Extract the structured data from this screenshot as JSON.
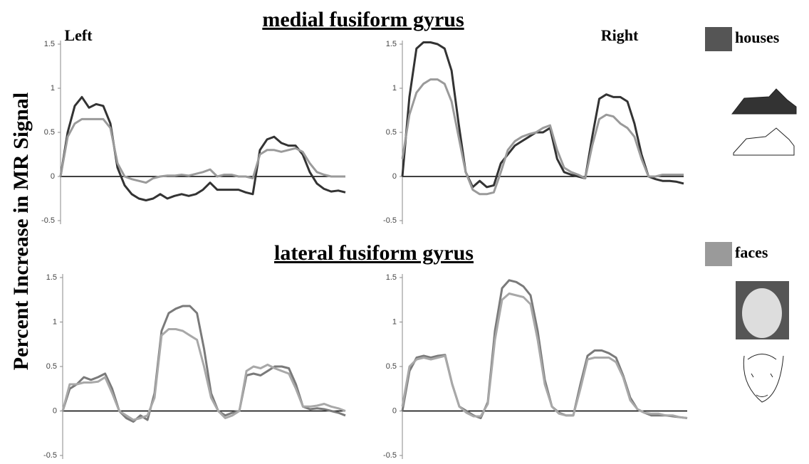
{
  "figure": {
    "ylabel": "Percent Increase in MR Signal",
    "sections": [
      "medial fusiform gyrus",
      "lateral fusiform gyrus"
    ],
    "legend": [
      {
        "name": "houses",
        "color": "#555555"
      },
      {
        "name": "faces",
        "color": "#9a9a9a"
      }
    ]
  },
  "chart_data": [
    {
      "type": "line",
      "title": "Left",
      "ylim": [
        -0.5,
        1.5
      ],
      "yticks": [
        -0.5,
        0,
        0.5,
        1,
        1.5
      ],
      "series": [
        {
          "color": "#333333",
          "values": [
            0,
            0.5,
            0.8,
            0.9,
            0.78,
            0.82,
            0.8,
            0.6,
            0.1,
            -0.1,
            -0.2,
            -0.25,
            -0.27,
            -0.25,
            -0.2,
            -0.25,
            -0.22,
            -0.2,
            -0.22,
            -0.2,
            -0.15,
            -0.07,
            -0.15,
            -0.15,
            -0.15,
            -0.15,
            -0.18,
            -0.2,
            0.3,
            0.42,
            0.45,
            0.38,
            0.35,
            0.35,
            0.25,
            0.05,
            -0.08,
            -0.14,
            -0.17,
            -0.16,
            -0.18
          ]
        },
        {
          "color": "#9a9a9a",
          "values": [
            0,
            0.45,
            0.6,
            0.65,
            0.65,
            0.65,
            0.65,
            0.55,
            0.15,
            0,
            -0.03,
            -0.05,
            -0.07,
            -0.02,
            0,
            0.01,
            0.01,
            0.02,
            0.01,
            0.03,
            0.05,
            0.08,
            0,
            0.02,
            0.02,
            0,
            0,
            -0.02,
            0.25,
            0.3,
            0.3,
            0.28,
            0.3,
            0.32,
            0.28,
            0.15,
            0.05,
            0.02,
            0,
            0,
            0
          ]
        }
      ]
    },
    {
      "type": "line",
      "title": "Right",
      "ylim": [
        -0.5,
        1.5
      ],
      "yticks": [
        -0.5,
        0,
        0.5,
        1,
        1.5
      ],
      "series": [
        {
          "color": "#333333",
          "values": [
            0,
            0.9,
            1.45,
            1.52,
            1.52,
            1.5,
            1.45,
            1.2,
            0.6,
            0.05,
            -0.12,
            -0.05,
            -0.12,
            -0.1,
            0.15,
            0.25,
            0.35,
            0.4,
            0.45,
            0.5,
            0.5,
            0.55,
            0.2,
            0.05,
            0.02,
            0,
            -0.02,
            0.45,
            0.88,
            0.93,
            0.9,
            0.9,
            0.85,
            0.6,
            0.25,
            0,
            -0.03,
            -0.05,
            -0.05,
            -0.06,
            -0.08
          ]
        },
        {
          "color": "#9a9a9a",
          "values": [
            0.2,
            0.7,
            0.95,
            1.05,
            1.1,
            1.1,
            1.05,
            0.85,
            0.45,
            0.05,
            -0.15,
            -0.2,
            -0.2,
            -0.18,
            0.05,
            0.3,
            0.4,
            0.45,
            0.48,
            0.5,
            0.55,
            0.58,
            0.3,
            0.1,
            0.05,
            0.02,
            -0.02,
            0.35,
            0.65,
            0.7,
            0.68,
            0.6,
            0.55,
            0.45,
            0.2,
            0,
            0,
            0.02,
            0.02,
            0.02,
            0.02
          ]
        }
      ]
    },
    {
      "type": "line",
      "ylim": [
        -0.5,
        1.5
      ],
      "yticks": [
        -0.5,
        0,
        0.5,
        1,
        1.5
      ],
      "series": [
        {
          "color": "#7a7a7a",
          "values": [
            0,
            0.25,
            0.3,
            0.38,
            0.35,
            0.38,
            0.42,
            0.25,
            0,
            -0.08,
            -0.12,
            -0.05,
            -0.1,
            0.2,
            0.9,
            1.1,
            1.15,
            1.18,
            1.18,
            1.1,
            0.7,
            0.2,
            0,
            -0.05,
            -0.02,
            0,
            0.4,
            0.42,
            0.4,
            0.45,
            0.5,
            0.5,
            0.48,
            0.3,
            0.05,
            0.02,
            0.03,
            0.02,
            0,
            -0.02,
            -0.05
          ]
        },
        {
          "color": "#a8a8a8",
          "values": [
            0,
            0.3,
            0.3,
            0.32,
            0.32,
            0.33,
            0.38,
            0.2,
            0,
            -0.05,
            -0.1,
            -0.08,
            -0.05,
            0.15,
            0.85,
            0.92,
            0.92,
            0.9,
            0.85,
            0.8,
            0.5,
            0.15,
            0,
            -0.08,
            -0.05,
            0,
            0.45,
            0.5,
            0.48,
            0.52,
            0.48,
            0.45,
            0.42,
            0.25,
            0.05,
            0.05,
            0.06,
            0.08,
            0.05,
            0.03,
            0
          ]
        }
      ]
    },
    {
      "type": "line",
      "ylim": [
        -0.5,
        1.5
      ],
      "yticks": [
        -0.5,
        0,
        0.5,
        1,
        1.5
      ],
      "series": [
        {
          "color": "#7a7a7a",
          "values": [
            0,
            0.45,
            0.6,
            0.62,
            0.6,
            0.62,
            0.63,
            0.3,
            0.05,
            0,
            -0.05,
            -0.08,
            0.1,
            0.9,
            1.38,
            1.47,
            1.45,
            1.4,
            1.3,
            0.9,
            0.35,
            0.05,
            -0.02,
            -0.05,
            -0.05,
            0.3,
            0.62,
            0.68,
            0.68,
            0.65,
            0.6,
            0.4,
            0.15,
            0.02,
            -0.02,
            -0.05,
            -0.05,
            -0.05,
            -0.06,
            -0.07,
            -0.08
          ]
        },
        {
          "color": "#a8a8a8",
          "values": [
            0.05,
            0.5,
            0.58,
            0.6,
            0.58,
            0.6,
            0.62,
            0.3,
            0.05,
            -0.02,
            -0.06,
            -0.06,
            0.08,
            0.8,
            1.25,
            1.32,
            1.3,
            1.28,
            1.2,
            0.8,
            0.3,
            0.05,
            -0.03,
            -0.05,
            -0.05,
            0.25,
            0.58,
            0.6,
            0.6,
            0.6,
            0.55,
            0.38,
            0.12,
            0.02,
            -0.02,
            -0.03,
            -0.03,
            -0.05,
            -0.05,
            -0.07,
            -0.08
          ]
        }
      ]
    }
  ]
}
